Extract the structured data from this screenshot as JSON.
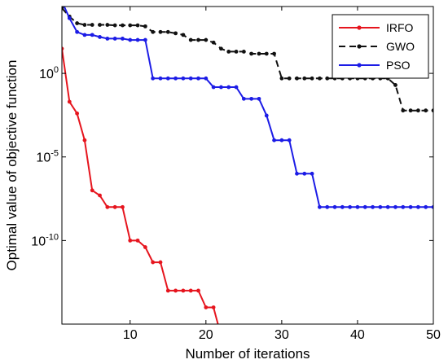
{
  "chart_data": {
    "type": "line",
    "title": "",
    "xlabel": "Number of iterations",
    "ylabel": "Optimal value of objective function",
    "xlim": [
      1,
      50
    ],
    "ylim": [
      1e-15,
      10000.0
    ],
    "yscale": "log",
    "grid": false,
    "legend_position": "top-right",
    "x_ticks": [
      {
        "value": 10,
        "label": "10"
      },
      {
        "value": 20,
        "label": "20"
      },
      {
        "value": 30,
        "label": "30"
      },
      {
        "value": 40,
        "label": "40"
      },
      {
        "value": 50,
        "label": "50"
      }
    ],
    "y_ticks": [
      {
        "value": 1,
        "base": "10",
        "exp": "0"
      },
      {
        "value": 1e-05,
        "base": "10",
        "exp": "-5"
      },
      {
        "value": 1e-10,
        "base": "10",
        "exp": "-10"
      }
    ],
    "x": [
      1,
      2,
      3,
      4,
      5,
      6,
      7,
      8,
      9,
      10,
      11,
      12,
      13,
      14,
      15,
      16,
      17,
      18,
      19,
      20,
      21,
      22,
      23,
      24,
      25,
      26,
      27,
      28,
      29,
      30,
      31,
      32,
      33,
      34,
      35,
      36,
      37,
      38,
      39,
      40,
      41,
      42,
      43,
      44,
      45,
      46,
      47,
      48,
      49,
      50
    ],
    "series": [
      {
        "name": "IRFO",
        "color": "#e6151e",
        "line_style": "solid",
        "values": [
          30,
          0.02,
          0.004,
          0.0001,
          1e-07,
          5e-08,
          1e-08,
          1e-08,
          1e-08,
          1e-10,
          1e-10,
          4e-11,
          5e-12,
          5e-12,
          1e-13,
          1e-13,
          1e-13,
          1e-13,
          1e-13,
          1e-14,
          1e-14,
          2e-16,
          2e-16,
          2e-16,
          2e-16,
          2e-16,
          2e-16,
          2e-16,
          2e-16,
          2e-16,
          2e-16,
          2e-16,
          2e-16,
          2e-16,
          2e-16,
          2e-16,
          2e-16,
          2e-16,
          2e-16,
          2e-16,
          2e-16,
          2e-16,
          2e-16,
          2e-16,
          2e-16,
          2e-16,
          2e-16,
          2e-16,
          2e-16,
          2e-16
        ]
      },
      {
        "name": "GWO",
        "color": "#111111",
        "line_style": "dashed",
        "values": [
          8000,
          2500,
          1000,
          800,
          800,
          800,
          800,
          750,
          750,
          750,
          750,
          650,
          300,
          300,
          300,
          250,
          200,
          100,
          100,
          100,
          70,
          30,
          20,
          20,
          20,
          15,
          15,
          15,
          15,
          0.5,
          0.5,
          0.5,
          0.5,
          0.5,
          0.5,
          0.5,
          0.5,
          0.5,
          0.5,
          0.5,
          0.5,
          0.5,
          0.5,
          0.5,
          0.2,
          0.006,
          0.006,
          0.006,
          0.006,
          0.006
        ]
      },
      {
        "name": "PSO",
        "color": "#1c1ce6",
        "line_style": "solid",
        "values": [
          20000,
          2000,
          300,
          200,
          200,
          150,
          120,
          120,
          120,
          100,
          100,
          100,
          0.5,
          0.5,
          0.5,
          0.5,
          0.5,
          0.5,
          0.5,
          0.5,
          0.15,
          0.15,
          0.15,
          0.15,
          0.03,
          0.03,
          0.03,
          0.003,
          0.0001,
          0.0001,
          0.0001,
          1e-06,
          1e-06,
          1e-06,
          1e-08,
          1e-08,
          1e-08,
          1e-08,
          1e-08,
          1e-08,
          1e-08,
          1e-08,
          1e-08,
          1e-08,
          1e-08,
          1e-08,
          1e-08,
          1e-08,
          1e-08,
          1e-08
        ]
      }
    ]
  }
}
